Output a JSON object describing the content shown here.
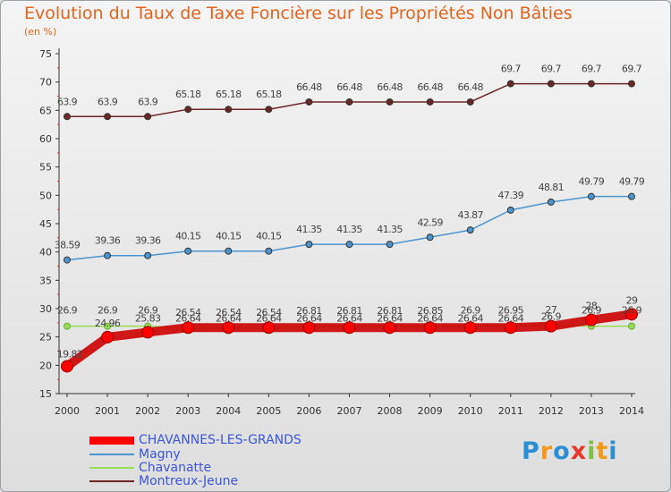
{
  "chart_data": {
    "type": "line",
    "title": "Evolution du Taux de Taxe Foncière sur les Propriétés Non Bâties",
    "subtitle": "(en %)",
    "xlabel": "",
    "ylabel": "",
    "ylim": [
      15,
      75
    ],
    "yticks": [
      15,
      20,
      25,
      30,
      35,
      40,
      45,
      50,
      55,
      60,
      65,
      70,
      75
    ],
    "x": [
      "2000",
      "2001",
      "2002",
      "2003",
      "2004",
      "2005",
      "2006",
      "2007",
      "2008",
      "2009",
      "2010",
      "2011",
      "2012",
      "2013",
      "2014"
    ],
    "grid": false,
    "legend_position": "bottom-left",
    "series": [
      {
        "name": "CHAVANNES-LES-GRANDS",
        "color": "#ff0000",
        "values": [
          19.82,
          24.96,
          25.83,
          26.64,
          26.64,
          26.64,
          26.64,
          26.64,
          26.64,
          26.64,
          26.64,
          26.64,
          26.9,
          28,
          29
        ],
        "labels": [
          "19.82",
          "24.96",
          "25.83",
          "26.64",
          "26.64",
          "26.64",
          "26.64",
          "26.64",
          "26.64",
          "26.64",
          "26.64",
          "26.64",
          "26.9",
          "28",
          "29"
        ]
      },
      {
        "name": "Magny",
        "color": "#4d94cc",
        "values": [
          38.59,
          39.36,
          39.36,
          40.15,
          40.15,
          40.15,
          41.35,
          41.35,
          41.35,
          42.59,
          43.87,
          47.39,
          48.81,
          49.79,
          49.79
        ],
        "labels": [
          "38.59",
          "39.36",
          "39.36",
          "40.15",
          "40.15",
          "40.15",
          "41.35",
          "41.35",
          "41.35",
          "42.59",
          "43.87",
          "47.39",
          "48.81",
          "49.79",
          "49.79"
        ]
      },
      {
        "name": "Chavanatte",
        "color": "#99dd55",
        "values": [
          26.9,
          26.9,
          26.9,
          26.54,
          26.54,
          26.54,
          26.81,
          26.81,
          26.81,
          26.85,
          26.9,
          26.95,
          27,
          26.9,
          26.9
        ],
        "labels": [
          "26.9",
          "26.9",
          "26.9",
          "26.54",
          "26.54",
          "26.54",
          "26.81",
          "26.81",
          "26.81",
          "26.85",
          "26.9",
          "26.95",
          "27",
          "26.9",
          "26.9"
        ]
      },
      {
        "name": "Montreux-Jeune",
        "color": "#6b2626",
        "values": [
          63.9,
          63.9,
          63.9,
          65.18,
          65.18,
          65.18,
          66.48,
          66.48,
          66.48,
          66.48,
          66.48,
          69.7,
          69.7,
          69.7,
          69.7
        ],
        "labels": [
          "63.9",
          "63.9",
          "63.9",
          "65.18",
          "65.18",
          "65.18",
          "66.48",
          "66.48",
          "66.48",
          "66.48",
          "66.48",
          "69.7",
          "69.7",
          "69.7",
          "69.7"
        ]
      }
    ]
  },
  "logo": {
    "letters": [
      "P",
      "r",
      "o",
      "x",
      "i",
      "t",
      "i"
    ],
    "colors": [
      "#2b8fd6",
      "#f39a1e",
      "#2b8fd6",
      "#e8382e",
      "#7fc241",
      "#f39a1e",
      "#2b8fd6"
    ]
  }
}
